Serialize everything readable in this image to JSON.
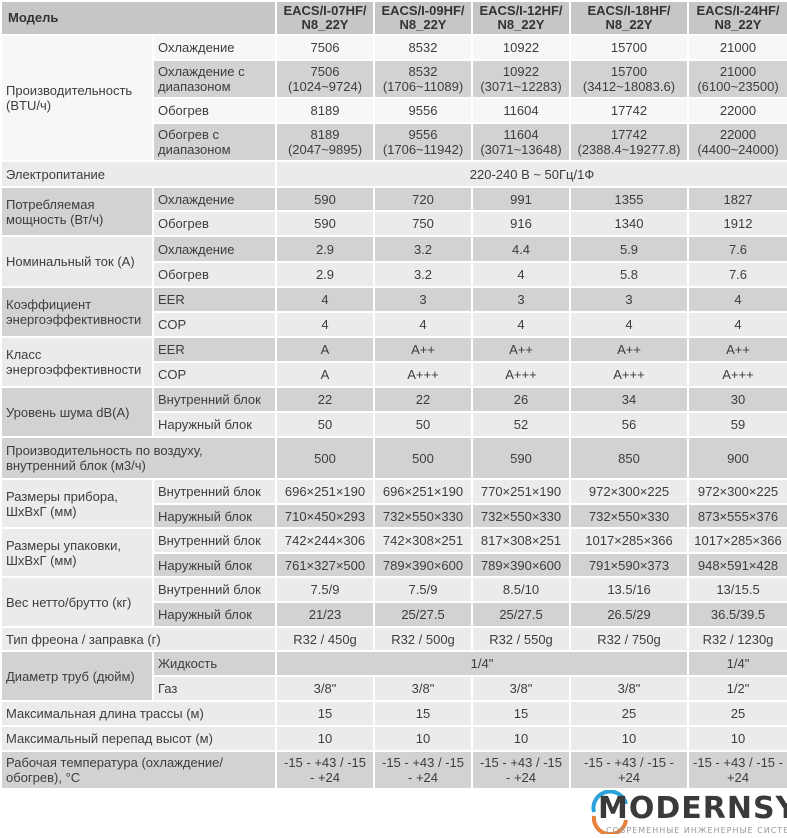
{
  "header": {
    "model_label": "Модель",
    "models": [
      "EACS/I-07HF/ N8_22Y",
      "EACS/I-09HF/ N8_22Y",
      "EACS/I-12HF/ N8_22Y",
      "EACS/I-18HF/ N8_22Y",
      "EACS/I-24HF/ N8_22Y"
    ]
  },
  "groups": [
    {
      "label": "Производительность (BTU/ч)",
      "rows": [
        {
          "sub": "Охлаждение",
          "values": [
            "7506",
            "8532",
            "10922",
            "15700",
            "21000"
          ]
        },
        {
          "sub": "Охлаждение с диапазоном",
          "values": [
            "7506 (1024~9724)",
            "8532 (1706~11089)",
            "10922 (3071~12283)",
            "15700 (3412~18083.6)",
            "21000 (6100~23500)"
          ]
        },
        {
          "sub": "Обогрев",
          "values": [
            "8189",
            "9556",
            "11604",
            "17742",
            "22000"
          ]
        },
        {
          "sub": "Обогрев с диапазоном",
          "values": [
            "8189 (2047~9895)",
            "9556 (1706~11942)",
            "11604 (3071~13648)",
            "17742 (2388.4~19277.8)",
            "22000 (4400~24000)"
          ]
        }
      ]
    },
    {
      "label": "Электропитание",
      "rows": [
        {
          "sub": "",
          "values": [
            "220-240 В ~ 50Гц/1Ф"
          ]
        }
      ]
    },
    {
      "label": "Потребляемая мощность (Вт/ч)",
      "rows": [
        {
          "sub": "Охлаждение",
          "values": [
            "590",
            "720",
            "991",
            "1355",
            "1827"
          ]
        },
        {
          "sub": "Обогрев",
          "values": [
            "590",
            "750",
            "916",
            "1340",
            "1912"
          ]
        }
      ]
    },
    {
      "label": "Номинальный ток (А)",
      "rows": [
        {
          "sub": "Охлаждение",
          "values": [
            "2.9",
            "3.2",
            "4.4",
            "5.9",
            "7.6"
          ]
        },
        {
          "sub": "Обогрев",
          "values": [
            "2.9",
            "3.2",
            "4",
            "5.8",
            "7.6"
          ]
        }
      ]
    },
    {
      "label": "Коэффициент энергоэффективности",
      "rows": [
        {
          "sub": "EER",
          "values": [
            "4",
            "3",
            "3",
            "3",
            "4"
          ]
        },
        {
          "sub": "COP",
          "values": [
            "4",
            "4",
            "4",
            "4",
            "4"
          ]
        }
      ]
    },
    {
      "label": "Класс энергоэффективности",
      "rows": [
        {
          "sub": "EER",
          "values": [
            "A",
            "A++",
            "A++",
            "A++",
            "A++"
          ]
        },
        {
          "sub": "COP",
          "values": [
            "A",
            "A+++",
            "A+++",
            "A+++",
            "A+++"
          ]
        }
      ]
    },
    {
      "label": "Уровень шума dB(A)",
      "rows": [
        {
          "sub": "Внутренний блок",
          "values": [
            "22",
            "22",
            "26",
            "34",
            "30"
          ]
        },
        {
          "sub": "Наружный блок",
          "values": [
            "50",
            "50",
            "52",
            "56",
            "59"
          ]
        }
      ]
    },
    {
      "label": "Производительность по воздуху, внутренний блок (м3/ч)",
      "rows": [
        {
          "sub": "",
          "values": [
            "500",
            "500",
            "590",
            "850",
            "900"
          ]
        }
      ]
    },
    {
      "label": "Размеры прибора, ШхВхГ (мм)",
      "rows": [
        {
          "sub": "Внутренний блок",
          "values": [
            "696×251×190",
            "696×251×190",
            "770×251×190",
            "972×300×225",
            "972×300×225"
          ]
        },
        {
          "sub": "Наружный блок",
          "values": [
            "710×450×293",
            "732×550×330",
            "732×550×330",
            "732×550×330",
            "873×555×376"
          ]
        }
      ]
    },
    {
      "label": "Размеры упаковки, ШхВхГ (мм)",
      "rows": [
        {
          "sub": "Внутренний блок",
          "values": [
            "742×244×306",
            "742×308×251",
            "817×308×251",
            "1017×285×366",
            "1017×285×366"
          ]
        },
        {
          "sub": "Наружный блок",
          "values": [
            "761×327×500",
            "789×390×600",
            "789×390×600",
            "791×590×373",
            "948×591×428"
          ]
        }
      ]
    },
    {
      "label": "Вес нетто/брутто (кг)",
      "rows": [
        {
          "sub": "Внутренний блок",
          "values": [
            "7.5/9",
            "7.5/9",
            "8.5/10",
            "13.5/16",
            "13/15.5"
          ]
        },
        {
          "sub": "Наружный блок",
          "values": [
            "21/23",
            "25/27.5",
            "25/27.5",
            "26.5/29",
            "36.5/39.5"
          ]
        }
      ]
    },
    {
      "label": "Тип фреона / заправка (г)",
      "rows": [
        {
          "sub": "",
          "values": [
            "R32 / 450g",
            "R32 / 500g",
            "R32 / 550g",
            "R32 / 750g",
            "R32 / 1230g"
          ]
        }
      ]
    },
    {
      "label": "Диаметр труб (дюйм)",
      "rows": [
        {
          "sub": "Жидкость",
          "values": [
            "1/4\"",
            "1/4\""
          ]
        },
        {
          "sub": "Газ",
          "values": [
            "3/8\"",
            "3/8\"",
            "3/8\"",
            "3/8\"",
            "1/2\""
          ]
        }
      ]
    },
    {
      "label": "Максимальная длина трассы (м)",
      "rows": [
        {
          "sub": "",
          "values": [
            "15",
            "15",
            "15",
            "25",
            "25"
          ]
        }
      ]
    },
    {
      "label": "Максимальный перепад высот (м)",
      "rows": [
        {
          "sub": "",
          "values": [
            "10",
            "10",
            "10",
            "10",
            "10"
          ]
        }
      ]
    },
    {
      "label": "Рабочая температура (охлаждение/ обогрев), °С",
      "rows": [
        {
          "sub": "",
          "values": [
            "-15 - +43 / -15 - +24",
            "-15 - +43 / -15 - +24",
            "-15 - +43 / -15 - +24",
            "-15 - +43 / -15 - +24",
            "-15 - +43 / -15 - +24"
          ]
        }
      ]
    }
  ],
  "watermark": {
    "brand": "MODERNSYS",
    "tagline": "СОВРЕМЕННЫЕ ИНЖЕНЕРНЫЕ СИСТЕМЫ"
  }
}
